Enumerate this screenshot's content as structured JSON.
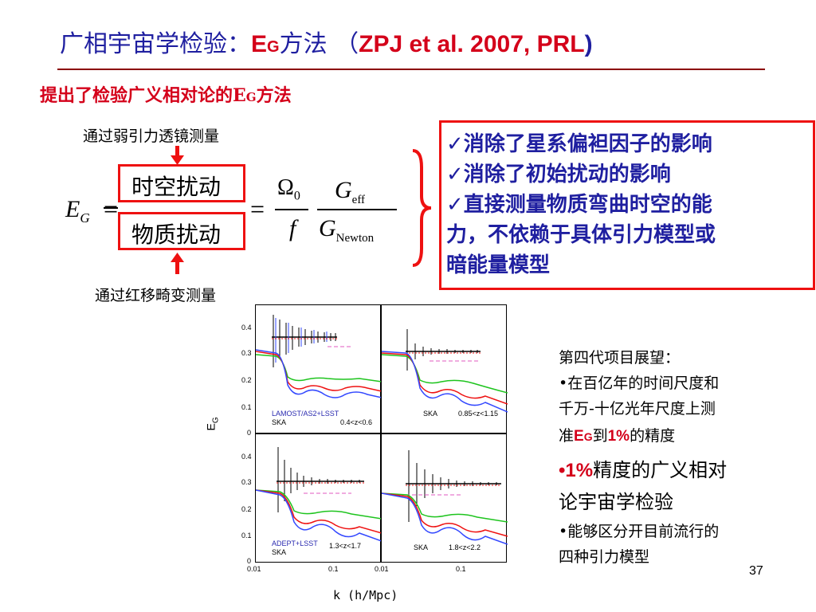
{
  "slide": {
    "title_cn": "广相宇宙学检验：",
    "title_e": "E",
    "title_g": "G",
    "title_method": "方法 （",
    "title_ref": "ZPJ et al. 2007, PRL",
    "title_close": ")",
    "subtitle_cn": "提出了检验广义相对论的",
    "subtitle_e": "E",
    "subtitle_g": "G",
    "subtitle_end": "方法",
    "page_number": "37"
  },
  "formula": {
    "top_note": "通过弱引力透镜测量",
    "bottom_note": "通过红移畸变测量",
    "lhs_e": "E",
    "lhs_g": "G",
    "eq": "=",
    "numerator_box": "时空扰动",
    "denominator_box": "物质扰动",
    "omega": "Ω",
    "omega_sub": "0",
    "f": "f",
    "g_top": "G",
    "g_top_sub": "eff",
    "g_bottom": "G",
    "g_bottom_sub": "Newton"
  },
  "advantages": [
    "✓消除了星系偏袒因子的影响",
    "✓消除了初始扰动的影响",
    "✓直接测量物质弯曲时空的能",
    "力，不依赖于具体引力模型或",
    "暗能量模型"
  ],
  "prospects": {
    "heading": "第四代项目展望：",
    "b1_l1": "•在百亿年的时间尺度和",
    "b1_l2": "千万-十亿光年尺度上测",
    "b1_l3a": "准",
    "b1_l3e": "E",
    "b1_l3g": "G",
    "b1_l3b": "到",
    "b1_l3pct": "1%",
    "b1_l3c": "的精度",
    "b2_dot": "•",
    "b2_pct": "1%",
    "b2_l1": "精度的广义相对",
    "b2_l2": "论宇宙学检验",
    "b3_l1": "•能够区分开目前流行的",
    "b3_l2": "四种引力模型"
  },
  "chart_data": [
    {
      "type": "line",
      "panel": "top-left",
      "labels": [
        "LAMOST/AS2+LSST",
        "SKA",
        "0.4<z<0.6"
      ],
      "ylim": [
        0,
        0.45
      ],
      "xscale": "log",
      "xlim": [
        0.01,
        0.5
      ],
      "y_ticks": [
        "0",
        "0.1",
        "0.2",
        "0.3",
        "0.4"
      ]
    },
    {
      "type": "line",
      "panel": "top-right",
      "labels": [
        "SKA",
        "0.85<z<1.15"
      ],
      "ylim": [
        0,
        0.45
      ],
      "xscale": "log",
      "xlim": [
        0.01,
        0.5
      ]
    },
    {
      "type": "line",
      "panel": "bottom-left",
      "labels": [
        "ADEPT+LSST",
        "SKA",
        "1.3<z<1.7"
      ],
      "ylim": [
        0,
        0.45
      ],
      "xscale": "log",
      "xlim": [
        0.01,
        0.5
      ],
      "y_ticks": [
        "0",
        "0.1",
        "0.2",
        "0.3",
        "0.4"
      ],
      "x_ticks": [
        "0.01",
        "0.1"
      ]
    },
    {
      "type": "line",
      "panel": "bottom-right",
      "labels": [
        "SKA",
        "1.8<z<2.2"
      ],
      "ylim": [
        0,
        0.45
      ],
      "xscale": "log",
      "xlim": [
        0.01,
        0.5
      ],
      "x_ticks": [
        "0.01",
        "0.1"
      ]
    }
  ],
  "axes": {
    "ylabel": "E",
    "ylabel_sub": "G",
    "xlabel": "k (h/Mpc)"
  },
  "colors": {
    "title_blue": "#1f1fa0",
    "accent_red": "#d4001a",
    "box_red": "#e11111"
  }
}
